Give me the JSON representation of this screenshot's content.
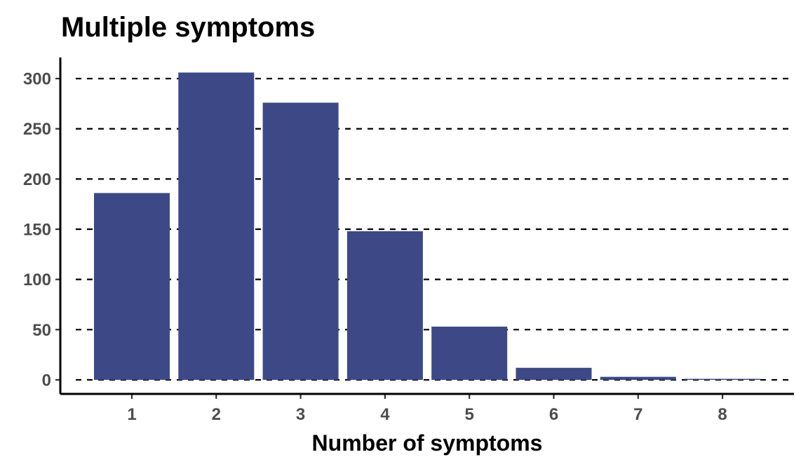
{
  "chart_data": {
    "type": "bar",
    "title": "Multiple symptoms",
    "xlabel": "Number of symptoms",
    "ylabel": "",
    "categories": [
      "1",
      "2",
      "3",
      "4",
      "5",
      "6",
      "7",
      "8"
    ],
    "values": [
      186,
      306,
      276,
      148,
      53,
      12,
      3,
      1
    ],
    "ylim": [
      -14,
      321
    ],
    "yticks": [
      0,
      50,
      100,
      150,
      200,
      250,
      300
    ],
    "grid": "horizontal dashed",
    "bar_color": "#3d4986"
  }
}
